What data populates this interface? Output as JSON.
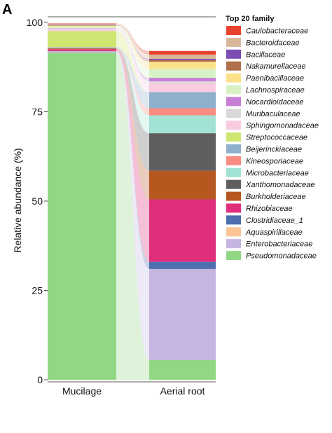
{
  "panel_label": "A",
  "chart_data": {
    "type": "bar",
    "subtype": "stacked-alluvial",
    "title": "",
    "xlabel": "",
    "ylabel": "Relative abundance (%)",
    "ylim": [
      0,
      100
    ],
    "yticks": [
      "0",
      "25",
      "50",
      "75",
      "100"
    ],
    "categories": [
      "Mucilage",
      "Aerial root"
    ],
    "legend_title": "Top 20 family",
    "legend_position": "right",
    "grid": false,
    "series": [
      {
        "name": "Pseudomonadaceae",
        "color": "#92d784",
        "values": [
          91.5,
          5.5
        ]
      },
      {
        "name": "Enterobacteriaceae",
        "color": "#c5b5e0",
        "values": [
          0.3,
          25.5
        ]
      },
      {
        "name": "Aquaspirillaceae",
        "color": "#fdc596",
        "values": [
          0.1,
          0.0
        ]
      },
      {
        "name": "Clostridiaceae_1",
        "color": "#4d6fb0",
        "values": [
          0.1,
          2.0
        ]
      },
      {
        "name": "Rhizobiaceae",
        "color": "#df2e7a",
        "values": [
          0.5,
          17.5
        ]
      },
      {
        "name": "Burkholderiaceae",
        "color": "#b5571f",
        "values": [
          0.2,
          8.0
        ]
      },
      {
        "name": "Xanthomonadaceae",
        "color": "#5f5f5f",
        "values": [
          0.1,
          10.5
        ]
      },
      {
        "name": "Microbacteriaceae",
        "color": "#a2e3d6",
        "values": [
          0.1,
          5.0
        ]
      },
      {
        "name": "Kineosporiaceae",
        "color": "#f98c80",
        "values": [
          0.1,
          2.0
        ]
      },
      {
        "name": "Beijerinckiaceae",
        "color": "#8fb0cc",
        "values": [
          0.1,
          4.5
        ]
      },
      {
        "name": "Streptococcaceae",
        "color": "#cee672",
        "values": [
          4.5,
          0.0
        ]
      },
      {
        "name": "Sphingomonadaceae",
        "color": "#f9cbe1",
        "values": [
          0.5,
          2.5
        ]
      },
      {
        "name": "Muribaculaceae",
        "color": "#d9d9d9",
        "values": [
          0.2,
          0.5
        ]
      },
      {
        "name": "Nocardioidaceae",
        "color": "#c87fd6",
        "values": [
          0.1,
          1.0
        ]
      },
      {
        "name": "Lachnospiraceae",
        "color": "#d8f2c6",
        "values": [
          0.5,
          2.5
        ]
      },
      {
        "name": "Paenibacillaceae",
        "color": "#fbe28a",
        "values": [
          0.2,
          2.0
        ]
      },
      {
        "name": "Nakamurellaceae",
        "color": "#b06e4a",
        "values": [
          0.1,
          0.5
        ]
      },
      {
        "name": "Bacillaceae",
        "color": "#7c4db3",
        "values": [
          0.1,
          0.3
        ]
      },
      {
        "name": "Bacteroidaceae",
        "color": "#d9b79a",
        "values": [
          0.3,
          1.2
        ]
      },
      {
        "name": "Caulobacteraceae",
        "color": "#e8422e",
        "values": [
          0.1,
          1.0
        ]
      }
    ]
  }
}
